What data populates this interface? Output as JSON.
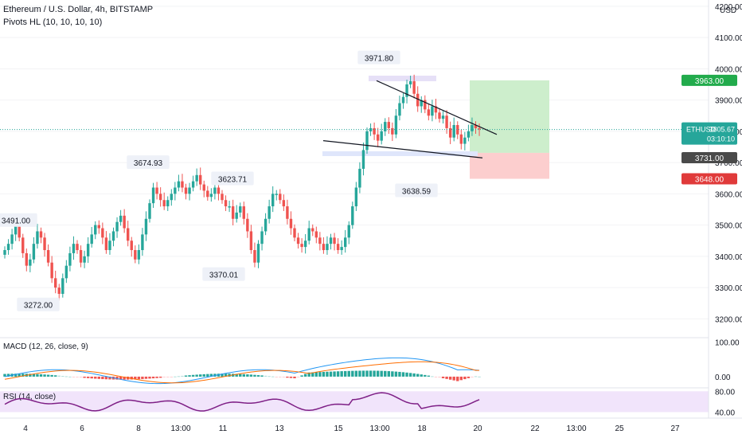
{
  "header": {
    "title": "Ethereum / U.S. Dollar, 4h, BITSTAMP",
    "indicator": "Pivots HL (10, 10, 10, 10)"
  },
  "price_axis": {
    "currency": "USD",
    "ticks": [
      "4200.00",
      "4100.00",
      "4000.00",
      "3900.00",
      "3800.00",
      "3700.00",
      "3600.00",
      "3500.00",
      "3400.00",
      "3300.00",
      "3200.00"
    ]
  },
  "badges": {
    "target": "3963.00",
    "symbol": "ETHUSD",
    "last_price": "3805.67",
    "countdown": "03:10:10",
    "entry": "3731.00",
    "stop": "3648.00"
  },
  "pivots": {
    "high_1": "3971.80",
    "high_2": "3674.93",
    "high_3": "3623.71",
    "high_4": "3491.00",
    "low_1": "3638.59",
    "low_2": "3370.01",
    "low_3": "3272.00"
  },
  "macd": {
    "label": "MACD (12, 26, close, 9)",
    "ticks": [
      "100.00",
      "0.00"
    ]
  },
  "rsi": {
    "label": "RSI (14, close)",
    "ticks": [
      "80.00",
      "40.00"
    ]
  },
  "time_axis": [
    "4",
    "6",
    "8",
    "13:00",
    "11",
    "13",
    "15",
    "13:00",
    "18",
    "20",
    "22",
    "13:00",
    "25",
    "27"
  ],
  "colors": {
    "up": "#26a69a",
    "down": "#ef5350",
    "macd_line": "#2196f3",
    "signal_line": "#ff6d00",
    "rsi_line": "#7e1f86",
    "rsi_band": "#f1e4fb",
    "target_zone": "#c8ecc7",
    "stop_zone": "#fcc9c9"
  },
  "chart_data": {
    "type": "candlestick",
    "title": "Ethereum / U.S. Dollar, 4h, BITSTAMP",
    "ylim": [
      3150,
      4220
    ],
    "price_levels": {
      "target": 3963.0,
      "last": 3805.67,
      "entry": 3731.0,
      "stop": 3648.0
    },
    "candles_close": [
      3420,
      3440,
      3470,
      3500,
      3460,
      3410,
      3370,
      3390,
      3440,
      3480,
      3460,
      3420,
      3380,
      3330,
      3300,
      3280,
      3330,
      3370,
      3410,
      3440,
      3420,
      3380,
      3400,
      3440,
      3470,
      3500,
      3490,
      3460,
      3420,
      3450,
      3480,
      3510,
      3530,
      3490,
      3450,
      3420,
      3390,
      3420,
      3470,
      3520,
      3570,
      3620,
      3600,
      3580,
      3560,
      3580,
      3600,
      3620,
      3640,
      3620,
      3600,
      3620,
      3640,
      3660,
      3630,
      3610,
      3590,
      3600,
      3620,
      3600,
      3580,
      3560,
      3560,
      3520,
      3540,
      3560,
      3520,
      3480,
      3420,
      3380,
      3440,
      3480,
      3520,
      3560,
      3600,
      3600,
      3580,
      3560,
      3520,
      3490,
      3460,
      3440,
      3430,
      3450,
      3490,
      3480,
      3460,
      3440,
      3420,
      3440,
      3460,
      3440,
      3420,
      3430,
      3460,
      3500,
      3560,
      3620,
      3680,
      3740,
      3800,
      3810,
      3790,
      3770,
      3800,
      3830,
      3810,
      3790,
      3850,
      3890,
      3910,
      3950,
      3960,
      3920,
      3880,
      3900,
      3870,
      3850,
      3880,
      3860,
      3840,
      3850,
      3810,
      3780,
      3820,
      3790,
      3760,
      3780,
      3800,
      3820,
      3810,
      3806
    ],
    "pivot_highs": [
      3971.8,
      3674.93,
      3623.71,
      3491.0
    ],
    "pivot_lows": [
      3638.59,
      3370.01,
      3272.0
    ],
    "macd_ylim": [
      -30,
      110
    ],
    "rsi_ylim": [
      30,
      85
    ],
    "rsi_band": [
      40,
      80
    ]
  }
}
